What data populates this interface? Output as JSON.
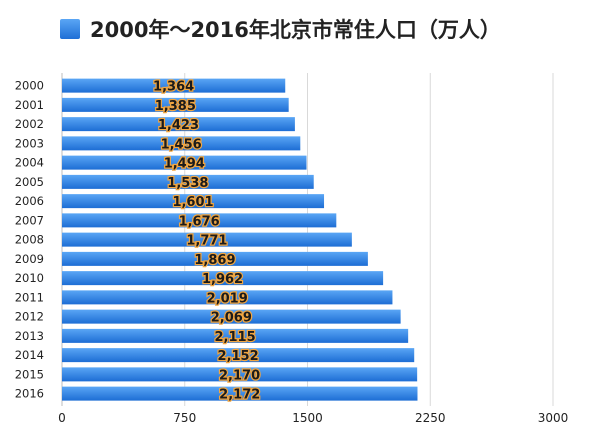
{
  "chart_data": {
    "type": "bar",
    "orientation": "horizontal",
    "title": "2000年～2016年北京市常住人口（万人）",
    "xlim": [
      0,
      3000
    ],
    "x_ticks": [
      "0",
      "750",
      "1500",
      "2250",
      "3000"
    ],
    "x_tick_values": [
      0,
      750,
      1500,
      2250,
      3000
    ],
    "grid": "vertical",
    "legend_position": "top-left",
    "categories": [
      "2000",
      "2001",
      "2002",
      "2003",
      "2004",
      "2005",
      "2006",
      "2007",
      "2008",
      "2009",
      "2010",
      "2011",
      "2012",
      "2013",
      "2014",
      "2015",
      "2016"
    ],
    "values": [
      1364,
      1385,
      1423,
      1456,
      1494,
      1538,
      1601,
      1676,
      1771,
      1869,
      1962,
      2019,
      2069,
      2115,
      2152,
      2170,
      2172
    ],
    "value_labels": [
      "1,364",
      "1,385",
      "1,423",
      "1,456",
      "1,494",
      "1,538",
      "1,601",
      "1,676",
      "1,771",
      "1,869",
      "1,962",
      "2,019",
      "2,069",
      "2,115",
      "2,152",
      "2,170",
      "2,172"
    ],
    "colors": {
      "bar_top": "#5aa6f5",
      "bar_bottom": "#1d6dd4",
      "label_fill": "#1b1b1b",
      "label_outline": "#f2a640",
      "grid": "#d9d9d9",
      "axis": "#bdbdbd",
      "text": "#222222"
    }
  }
}
